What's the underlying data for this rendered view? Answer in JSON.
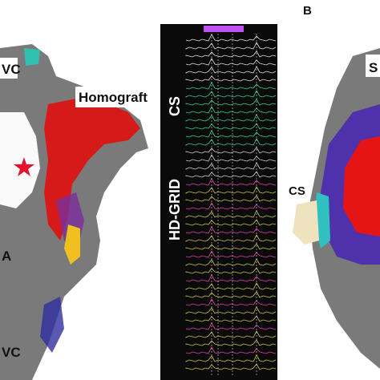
{
  "left_map": {
    "labels": [
      "VC",
      "Homograft",
      "A",
      "VC"
    ]
  },
  "egm": {
    "labels": [
      "CS",
      "HD-GRID"
    ]
  },
  "panel_b": {
    "letter": "B",
    "labels": [
      "S",
      "CS"
    ]
  }
}
